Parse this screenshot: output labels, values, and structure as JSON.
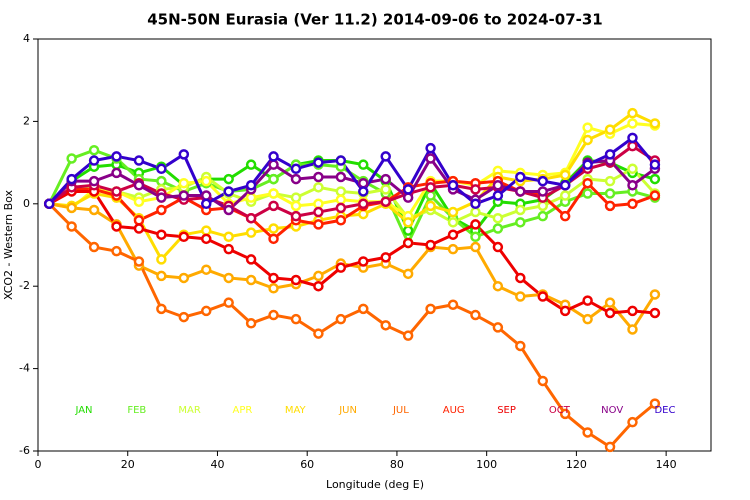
{
  "chart_data": {
    "type": "line",
    "title": "45N-50N Eurasia (Ver 11.2)   2014-09-06 to 2024-07-31",
    "x_label": "Longitude (deg E)",
    "y_label": "XCO2 - Western Box",
    "xlim": [
      0,
      150
    ],
    "ylim": [
      -6,
      4
    ],
    "xticks": [
      0,
      20,
      40,
      60,
      80,
      100,
      120,
      140
    ],
    "yticks": [
      -6,
      -4,
      -2,
      0,
      2,
      4
    ],
    "x": [
      2.5,
      7.5,
      12.5,
      17.5,
      22.5,
      27.5,
      32.5,
      37.5,
      42.5,
      47.5,
      52.5,
      57.5,
      62.5,
      67.5,
      72.5,
      77.5,
      82.5,
      87.5,
      92.5,
      97.5,
      102.5,
      107.5,
      112.5,
      117.5,
      122.5,
      127.5,
      132.5,
      137.5
    ],
    "series": [
      {
        "name": "JAN",
        "color": "#22dd00",
        "values": [
          0,
          0.55,
          0.9,
          0.95,
          0.75,
          0.9,
          0.45,
          0.6,
          0.6,
          0.95,
          0.6,
          0.95,
          1.05,
          1.05,
          0.95,
          0.55,
          -0.65,
          0.5,
          -0.35,
          -0.65,
          0.05,
          0.0,
          0.1,
          0.5,
          1.05,
          1.0,
          0.75,
          0.6
        ]
      },
      {
        "name": "FEB",
        "color": "#66ee22",
        "values": [
          0,
          1.1,
          1.3,
          1.1,
          0.6,
          0.55,
          0.3,
          0.5,
          0.3,
          0.35,
          0.6,
          0.95,
          0.95,
          0.9,
          0.55,
          0.25,
          -0.95,
          0.2,
          -0.35,
          -0.8,
          -0.6,
          -0.45,
          -0.3,
          0.05,
          0.25,
          0.25,
          0.3,
          0.15
        ]
      },
      {
        "name": "MAR",
        "color": "#ccff33",
        "values": [
          0,
          0.35,
          0.4,
          0.3,
          0.15,
          0.35,
          0.4,
          0.65,
          0.25,
          0.05,
          0.25,
          0.15,
          0.4,
          0.3,
          0.25,
          0.35,
          -0.35,
          -0.15,
          -0.45,
          -0.2,
          -0.35,
          -0.15,
          -0.05,
          0.2,
          0.6,
          0.55,
          0.85,
          0.25
        ]
      },
      {
        "name": "APR",
        "color": "#ffff22",
        "values": [
          0,
          -0.1,
          0.35,
          0.3,
          0.05,
          0.15,
          0.5,
          0.55,
          0.0,
          0.15,
          0.25,
          -0.05,
          0.0,
          0.1,
          0.05,
          0.05,
          -0.3,
          0.55,
          0.55,
          0.45,
          0.8,
          0.75,
          0.7,
          0.75,
          1.85,
          1.7,
          1.95,
          1.9
        ]
      },
      {
        "name": "MAY",
        "color": "#ffdd00",
        "values": [
          0,
          -0.05,
          0.25,
          0.15,
          -0.35,
          -1.35,
          -0.75,
          -0.65,
          -0.8,
          -0.7,
          -0.6,
          -0.55,
          -0.4,
          -0.3,
          -0.25,
          0.0,
          -0.45,
          -0.05,
          -0.2,
          0.05,
          0.65,
          0.55,
          0.6,
          0.7,
          1.55,
          1.8,
          2.2,
          1.95
        ]
      },
      {
        "name": "JUN",
        "color": "#ffaa00",
        "values": [
          0,
          -0.1,
          -0.15,
          -0.5,
          -1.5,
          -1.75,
          -1.8,
          -1.6,
          -1.8,
          -1.85,
          -2.05,
          -1.95,
          -1.75,
          -1.45,
          -1.55,
          -1.45,
          -1.7,
          -1.05,
          -1.1,
          -1.05,
          -2.0,
          -2.25,
          -2.2,
          -2.45,
          -2.8,
          -2.4,
          -3.05,
          -2.2
        ]
      },
      {
        "name": "JUL",
        "color": "#ff6600",
        "values": [
          0,
          -0.55,
          -1.05,
          -1.15,
          -1.4,
          -2.55,
          -2.75,
          -2.6,
          -2.4,
          -2.9,
          -2.7,
          -2.8,
          -3.15,
          -2.8,
          -2.55,
          -2.95,
          -3.2,
          -2.55,
          -2.45,
          -2.7,
          -3.0,
          -3.45,
          -4.3,
          -5.1,
          -5.55,
          -5.9,
          -5.3,
          -4.85
        ]
      },
      {
        "name": "AUG",
        "color": "#ff2200",
        "values": [
          0,
          0.35,
          0.35,
          0.2,
          -0.4,
          -0.15,
          0.15,
          -0.15,
          -0.1,
          -0.35,
          -0.85,
          -0.4,
          -0.5,
          -0.4,
          -0.05,
          0.05,
          0.4,
          0.5,
          0.55,
          0.5,
          0.55,
          0.3,
          0.2,
          -0.3,
          0.5,
          -0.05,
          0.0,
          0.2
        ]
      },
      {
        "name": "SEP",
        "color": "#ee0000",
        "values": [
          0,
          0.3,
          0.3,
          -0.55,
          -0.6,
          -0.75,
          -0.8,
          -0.85,
          -1.1,
          -1.35,
          -1.8,
          -1.85,
          -2.0,
          -1.55,
          -1.4,
          -1.3,
          -0.95,
          -1.0,
          -0.75,
          -0.5,
          -1.05,
          -1.8,
          -2.25,
          -2.6,
          -2.35,
          -2.65,
          -2.6,
          -2.65
        ]
      },
      {
        "name": "OCT",
        "color": "#cc0044",
        "values": [
          0,
          0.4,
          0.45,
          0.3,
          0.5,
          0.25,
          0.1,
          0.15,
          -0.05,
          -0.35,
          -0.05,
          -0.3,
          -0.2,
          -0.1,
          0.0,
          0.05,
          0.25,
          0.4,
          0.45,
          0.35,
          0.4,
          0.3,
          0.15,
          0.45,
          0.85,
          1.0,
          1.4,
          1.05
        ]
      },
      {
        "name": "NOV",
        "color": "#880088",
        "values": [
          0,
          0.55,
          0.55,
          0.75,
          0.45,
          0.15,
          0.2,
          0.2,
          -0.15,
          0.35,
          0.95,
          0.6,
          0.65,
          0.65,
          0.5,
          0.6,
          0.15,
          1.1,
          0.35,
          0.1,
          0.45,
          0.3,
          0.3,
          0.45,
          1.0,
          1.05,
          0.45,
          0.85
        ]
      },
      {
        "name": "DEC",
        "color": "#3300cc",
        "values": [
          0,
          0.6,
          1.05,
          1.15,
          1.05,
          0.85,
          1.2,
          0.0,
          0.3,
          0.45,
          1.15,
          0.85,
          1.0,
          1.05,
          0.3,
          1.15,
          0.35,
          1.35,
          0.45,
          0.0,
          0.2,
          0.65,
          0.55,
          0.45,
          0.95,
          1.2,
          1.6,
          0.95
        ]
      }
    ]
  }
}
